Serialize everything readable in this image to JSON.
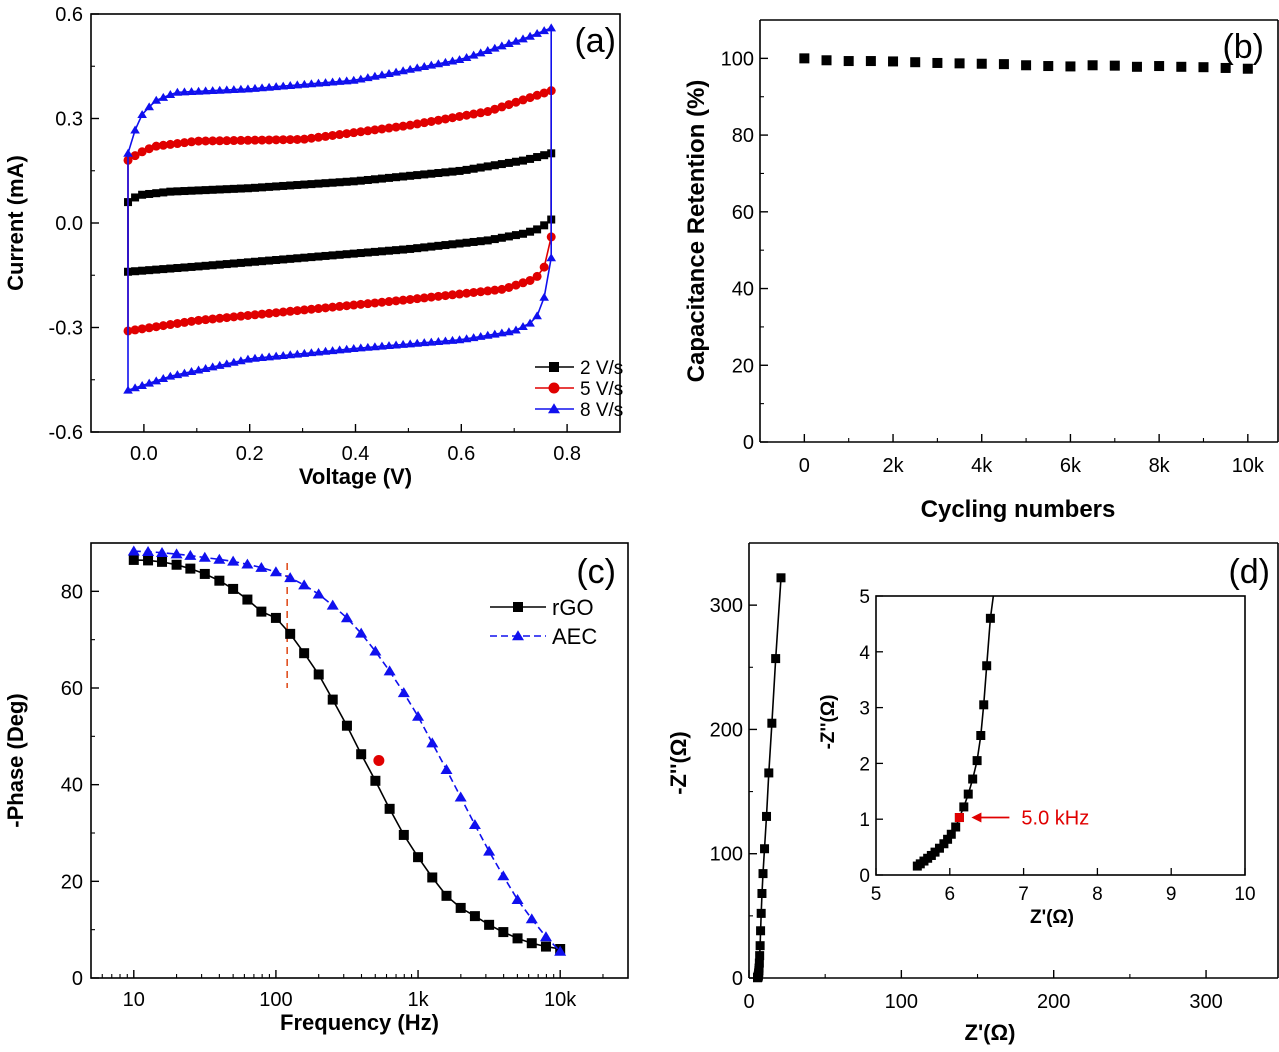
{
  "chart_data": [
    {
      "id": "a",
      "panel_label": "(a)",
      "type": "line",
      "xlabel": "Voltage (V)",
      "ylabel": "Current (mA)",
      "xlim": [
        -0.1,
        0.9
      ],
      "ylim": [
        -0.6,
        0.6
      ],
      "xticks": [
        0.0,
        0.2,
        0.4,
        0.6,
        0.8
      ],
      "xtick_labels": [
        "0.0",
        "0.2",
        "0.4",
        "0.6",
        "0.8"
      ],
      "yticks": [
        -0.6,
        -0.3,
        0.0,
        0.3,
        0.6
      ],
      "ytick_labels": [
        "-0.6",
        "-0.3",
        "0.0",
        "0.3",
        "0.6"
      ],
      "legend_position": "bottom-right",
      "series": [
        {
          "name": "2 V/s",
          "color": "#000000",
          "marker": "square",
          "vmin": -0.03,
          "vmax": 0.77,
          "upper": [
            [
              -0.03,
              0.06
            ],
            [
              -0.01,
              0.08
            ],
            [
              0.05,
              0.09
            ],
            [
              0.2,
              0.1
            ],
            [
              0.4,
              0.12
            ],
            [
              0.6,
              0.15
            ],
            [
              0.72,
              0.18
            ],
            [
              0.77,
              0.2
            ]
          ],
          "lower": [
            [
              -0.03,
              -0.14
            ],
            [
              0.1,
              -0.125
            ],
            [
              0.3,
              -0.1
            ],
            [
              0.5,
              -0.075
            ],
            [
              0.65,
              -0.05
            ],
            [
              0.72,
              -0.03
            ],
            [
              0.75,
              -0.015
            ],
            [
              0.77,
              0.01
            ]
          ]
        },
        {
          "name": "5 V/s",
          "color": "#e00000",
          "marker": "circle",
          "vmin": -0.03,
          "vmax": 0.77,
          "upper": [
            [
              -0.03,
              0.18
            ],
            [
              -0.01,
              0.2
            ],
            [
              0.02,
              0.22
            ],
            [
              0.1,
              0.235
            ],
            [
              0.3,
              0.24
            ],
            [
              0.5,
              0.28
            ],
            [
              0.65,
              0.32
            ],
            [
              0.77,
              0.38
            ]
          ],
          "lower": [
            [
              -0.03,
              -0.31
            ],
            [
              0.1,
              -0.28
            ],
            [
              0.3,
              -0.25
            ],
            [
              0.5,
              -0.22
            ],
            [
              0.68,
              -0.19
            ],
            [
              0.74,
              -0.16
            ],
            [
              0.76,
              -0.12
            ],
            [
              0.77,
              -0.04
            ]
          ]
        },
        {
          "name": "8 V/s",
          "color": "#1010ee",
          "marker": "triangle",
          "vmin": -0.03,
          "vmax": 0.77,
          "upper": [
            [
              -0.03,
              0.2
            ],
            [
              -0.01,
              0.3
            ],
            [
              0.02,
              0.35
            ],
            [
              0.06,
              0.375
            ],
            [
              0.2,
              0.385
            ],
            [
              0.4,
              0.41
            ],
            [
              0.6,
              0.47
            ],
            [
              0.72,
              0.53
            ],
            [
              0.77,
              0.56
            ]
          ],
          "lower": [
            [
              -0.03,
              -0.48
            ],
            [
              0.05,
              -0.44
            ],
            [
              0.2,
              -0.39
            ],
            [
              0.4,
              -0.36
            ],
            [
              0.6,
              -0.335
            ],
            [
              0.7,
              -0.31
            ],
            [
              0.74,
              -0.28
            ],
            [
              0.76,
              -0.2
            ],
            [
              0.77,
              -0.1
            ]
          ]
        }
      ]
    },
    {
      "id": "b",
      "panel_label": "(b)",
      "type": "scatter",
      "xlabel": "Cycling numbers",
      "ylabel": "Capacitance Retention (%)",
      "xlim": [
        -1000,
        10500
      ],
      "ylim": [
        0,
        110
      ],
      "xticks": [
        0,
        2000,
        4000,
        6000,
        8000,
        10000
      ],
      "xtick_labels": [
        "0",
        "2k",
        "4k",
        "6k",
        "8k",
        "10k"
      ],
      "yticks": [
        0,
        20,
        40,
        60,
        80,
        100
      ],
      "ytick_labels": [
        "0",
        "20",
        "40",
        "60",
        "80",
        "100"
      ],
      "series": [
        {
          "name": "",
          "color": "#000000",
          "marker": "square",
          "x": [
            0,
            500,
            1000,
            1500,
            2000,
            2500,
            3000,
            3500,
            4000,
            4500,
            5000,
            5500,
            6000,
            6500,
            7000,
            7500,
            8000,
            8500,
            9000,
            9500,
            10000
          ],
          "y": [
            100,
            99.5,
            99.3,
            99.3,
            99.2,
            99.0,
            98.8,
            98.7,
            98.6,
            98.5,
            98.2,
            98.0,
            97.9,
            98.2,
            98.1,
            97.8,
            98.0,
            97.8,
            97.7,
            97.5,
            97.3
          ]
        }
      ]
    },
    {
      "id": "c",
      "panel_label": "(c)",
      "type": "line",
      "xlabel": "Frequency (Hz)",
      "ylabel": "-Phase (Deg)",
      "xscale": "log",
      "xlim": [
        5,
        30000
      ],
      "ylim": [
        0,
        90
      ],
      "xticks": [
        10,
        100,
        1000,
        10000
      ],
      "xtick_labels": [
        "10",
        "100",
        "1k",
        "10k"
      ],
      "yticks": [
        0,
        20,
        40,
        60,
        80
      ],
      "ytick_labels": [
        "0",
        "20",
        "40",
        "60",
        "80"
      ],
      "legend_position": "top-right",
      "vline": {
        "x": 120,
        "y_from": 60,
        "y_to": 90,
        "color": "#e05020"
      },
      "highlight_point": {
        "x": 530,
        "y": 45,
        "color": "#e00000"
      },
      "series": [
        {
          "name": "rGO",
          "color": "#000000",
          "marker": "square",
          "dash": "solid",
          "x": [
            10,
            12.6,
            15.8,
            20,
            25,
            31.6,
            40,
            50,
            63,
            79,
            100,
            126,
            158,
            200,
            251,
            316,
            398,
            501,
            631,
            794,
            1000,
            1259,
            1585,
            1995,
            2512,
            3162,
            3981,
            5012,
            6310,
            7943,
            10000
          ],
          "y": [
            86.5,
            86.4,
            86.1,
            85.5,
            84.7,
            83.6,
            82.2,
            80.5,
            78.3,
            75.8,
            74.5,
            71.2,
            67.2,
            62.8,
            57.6,
            52.2,
            46.3,
            40.8,
            35.0,
            29.6,
            25.0,
            20.8,
            17.0,
            14.5,
            12.8,
            11.0,
            9.5,
            8.2,
            7.2,
            6.5,
            6.0
          ]
        },
        {
          "name": "AEC",
          "color": "#1010ee",
          "marker": "triangle",
          "dash": "dashed",
          "x": [
            10,
            12.6,
            15.8,
            20,
            25,
            31.6,
            40,
            50,
            63,
            79,
            100,
            126,
            158,
            200,
            251,
            316,
            398,
            501,
            631,
            794,
            1000,
            1259,
            1585,
            1995,
            2512,
            3162,
            3981,
            5012,
            6310,
            7943,
            10000
          ],
          "y": [
            88.3,
            88.2,
            88.0,
            87.7,
            87.4,
            87.0,
            86.6,
            86.2,
            85.6,
            84.9,
            84.0,
            82.8,
            81.3,
            79.4,
            77.1,
            74.5,
            71.3,
            67.6,
            63.5,
            59.0,
            54.1,
            48.6,
            43.1,
            37.4,
            31.7,
            26.2,
            21.1,
            16.2,
            12.2,
            8.5,
            5.5
          ]
        }
      ]
    },
    {
      "id": "d",
      "panel_label": "(d)",
      "type": "scatter",
      "xlabel": "Z'(Ω)",
      "ylabel": "-Z''(Ω)",
      "xlim": [
        0,
        340
      ],
      "ylim": [
        0,
        350
      ],
      "xticks": [
        0,
        100,
        200,
        300
      ],
      "xtick_labels": [
        "0",
        "100",
        "200",
        "300"
      ],
      "yticks": [
        0,
        100,
        200,
        300
      ],
      "ytick_labels": [
        "0",
        "100",
        "200",
        "300"
      ],
      "series": [
        {
          "name": "",
          "color": "#000000",
          "marker": "square",
          "x": [
            5.6,
            5.7,
            5.8,
            5.9,
            6.0,
            6.1,
            6.2,
            6.3,
            6.4,
            6.5,
            6.6,
            6.8,
            7.0,
            7.3,
            7.6,
            8.0,
            8.5,
            9.2,
            10.2,
            11.5,
            13.0,
            15.0,
            17.5,
            21.0
          ],
          "y": [
            0.2,
            0.4,
            0.6,
            0.9,
            1.2,
            1.8,
            2.5,
            3.5,
            4.6,
            6,
            8,
            12,
            18,
            26,
            38,
            52,
            68,
            84,
            104,
            130,
            165,
            205,
            257,
            322
          ]
        }
      ],
      "inset": {
        "xlabel": "Z'(Ω)",
        "ylabel": "-Z''(Ω)",
        "xlim": [
          5,
          10
        ],
        "ylim": [
          0,
          5
        ],
        "xticks": [
          5,
          6,
          7,
          8,
          9,
          10
        ],
        "xtick_labels": [
          "5",
          "6",
          "7",
          "8",
          "9",
          "10"
        ],
        "yticks": [
          0,
          1,
          2,
          3,
          4,
          5
        ],
        "ytick_labels": [
          "0",
          "1",
          "2",
          "3",
          "4",
          "5"
        ],
        "annotation": {
          "text": "5.0 kHz",
          "x": 6.13,
          "y": 1.03,
          "color": "#e00000"
        },
        "series": [
          {
            "name": "",
            "color": "#000000",
            "marker": "square",
            "x": [
              5.56,
              5.6,
              5.65,
              5.7,
              5.75,
              5.8,
              5.86,
              5.92,
              5.97,
              6.02,
              6.08,
              6.13,
              6.19,
              6.25,
              6.31,
              6.37,
              6.42,
              6.46,
              6.5,
              6.55,
              6.61
            ],
            "y": [
              0.16,
              0.2,
              0.25,
              0.3,
              0.35,
              0.41,
              0.48,
              0.56,
              0.64,
              0.73,
              0.86,
              1.03,
              1.22,
              1.45,
              1.72,
              2.05,
              2.5,
              3.05,
              3.75,
              4.6,
              5.2
            ]
          }
        ]
      }
    }
  ]
}
